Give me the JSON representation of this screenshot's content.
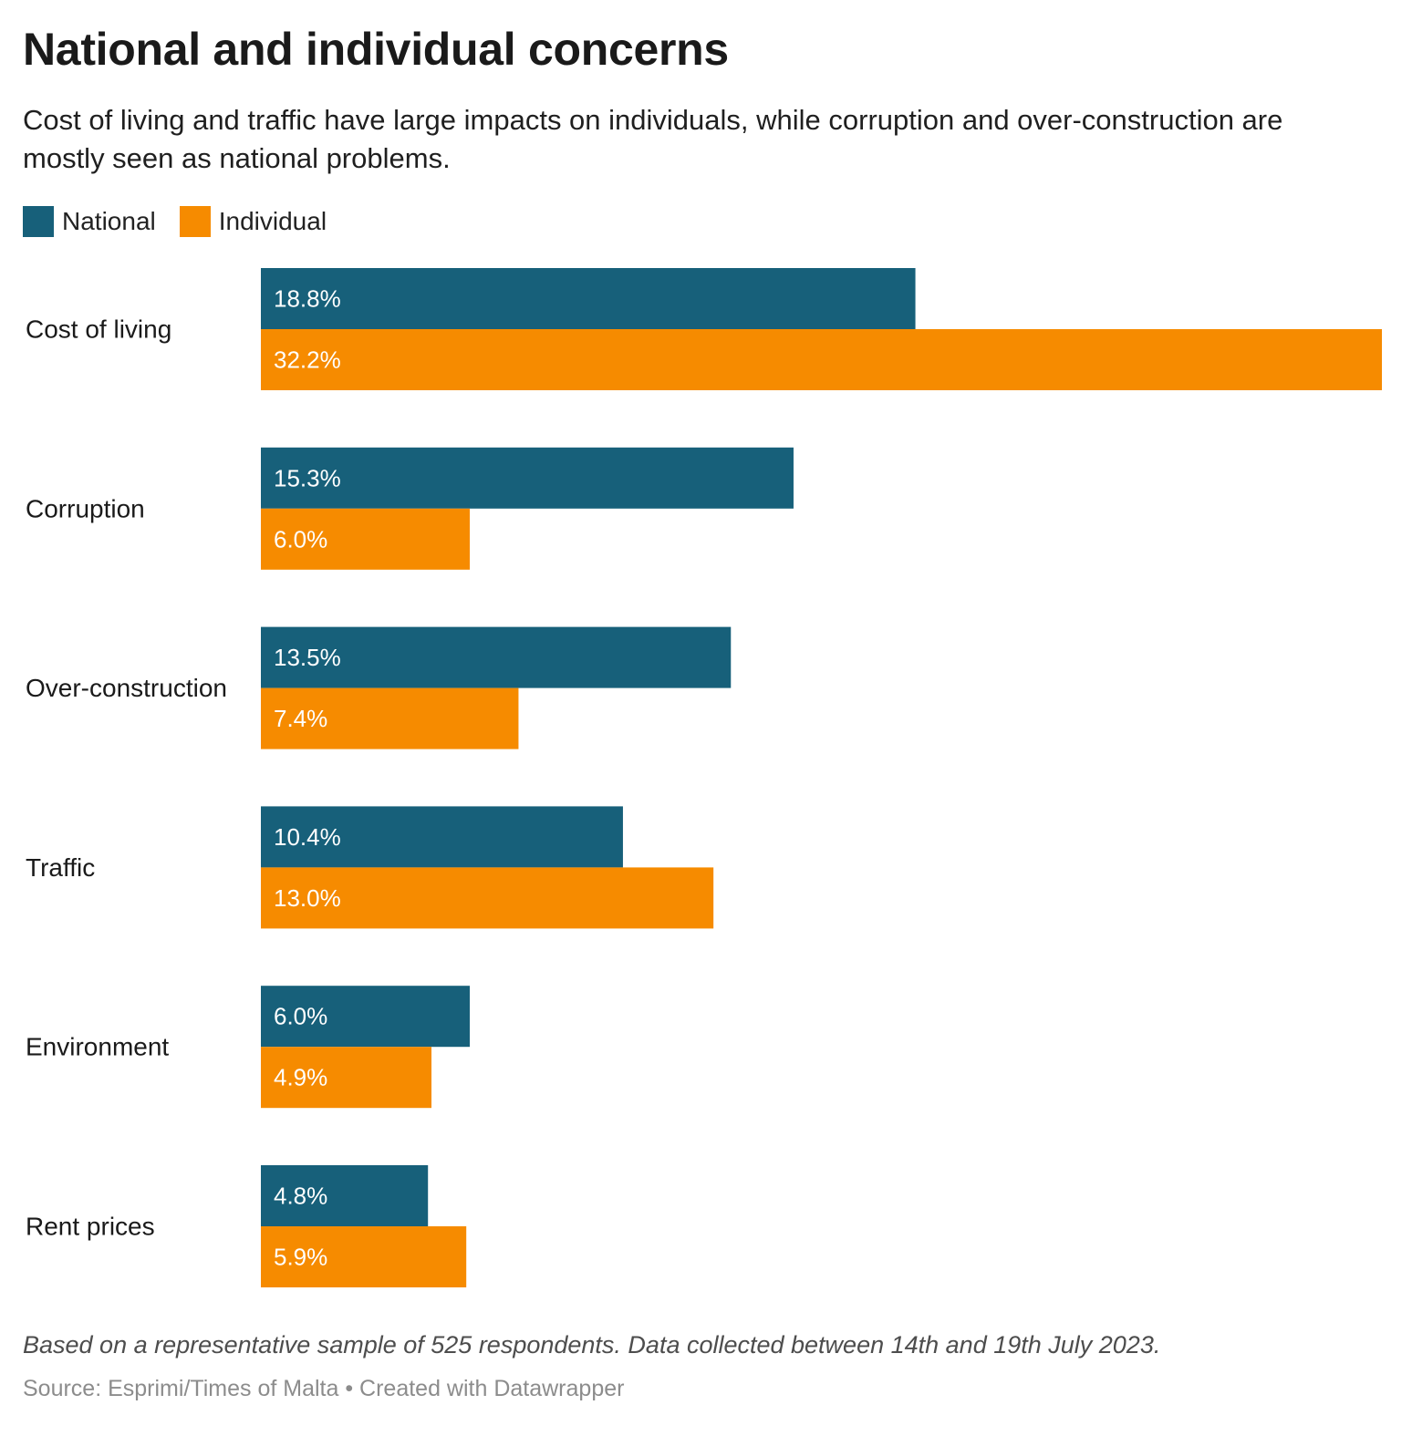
{
  "title": "National and individual concerns",
  "subtitle": "Cost of living and traffic have large impacts on individuals, while corruption and over-construction are mostly seen as national problems.",
  "legend": [
    {
      "label": "National",
      "color": "#17607a"
    },
    {
      "label": "Individual",
      "color": "#f68b00"
    }
  ],
  "chart_data": {
    "type": "bar",
    "orientation": "horizontal",
    "categories": [
      "Cost of living",
      "Corruption",
      "Over-construction",
      "Traffic",
      "Environment",
      "Rent prices"
    ],
    "series": [
      {
        "name": "National",
        "color": "#17607a",
        "values": [
          18.8,
          15.3,
          13.5,
          10.4,
          6.0,
          4.8
        ],
        "labels": [
          "18.8%",
          "15.3%",
          "13.5%",
          "10.4%",
          "6.0%",
          "4.8%"
        ]
      },
      {
        "name": "Individual",
        "color": "#f68b00",
        "values": [
          32.2,
          6.0,
          7.4,
          13.0,
          4.9,
          5.9
        ],
        "labels": [
          "32.2%",
          "6.0%",
          "7.4%",
          "13.0%",
          "4.9%",
          "5.9%"
        ]
      }
    ],
    "xlim": [
      0,
      32.2
    ],
    "grid": false,
    "legend_position": "top-left"
  },
  "footer": {
    "note": "Based on a representative sample of 525 respondents. Data collected between 14th and 19th July 2023.",
    "source": "Source: Esprimi/Times of Malta • Created with Datawrapper"
  }
}
